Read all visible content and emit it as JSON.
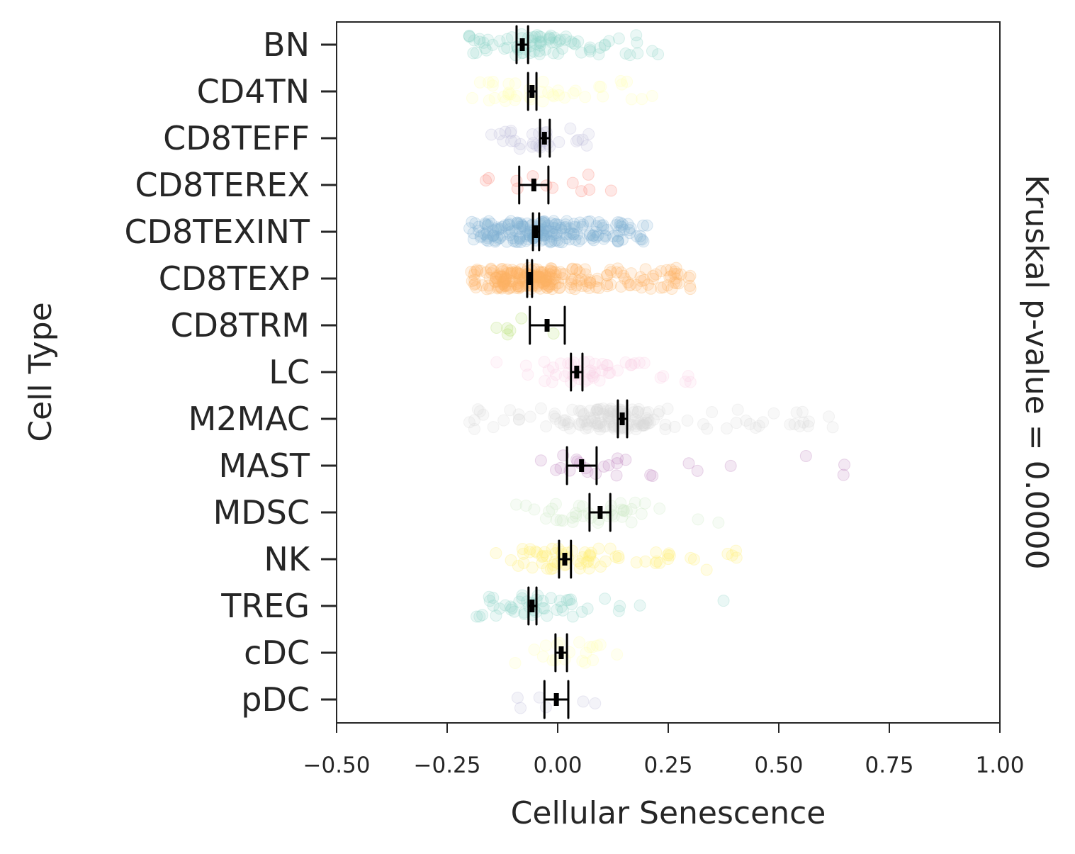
{
  "chart_data": {
    "type": "scatter",
    "subtype": "strip plot with mean and 95% CI error bars",
    "xlabel": "Cellular Senescence",
    "ylabel": "Cell Type",
    "right_label": "Kruskal p-value = 0.0000",
    "xlim": [
      -0.5,
      1.0
    ],
    "xticks": [
      -0.5,
      -0.25,
      0.0,
      0.25,
      0.5,
      0.75,
      1.0
    ],
    "xtick_labels": [
      "−0.50",
      "−0.25",
      "0.00",
      "0.25",
      "0.50",
      "0.75",
      "1.00"
    ],
    "grid": false,
    "categories": [
      "BN",
      "CD4TN",
      "CD8TEFF",
      "CD8TEREX",
      "CD8TEXINT",
      "CD8TEXP",
      "CD8TRM",
      "LC",
      "M2MAC",
      "MAST",
      "MDSC",
      "NK",
      "TREG",
      "cDC",
      "pDC"
    ],
    "colors": [
      "#8dd3c7",
      "#ffffb3",
      "#bebada",
      "#fb8072",
      "#80b1d3",
      "#fdb462",
      "#b3de69",
      "#fccde5",
      "#d9d9d9",
      "#bc80bd",
      "#ccebc5",
      "#ffed6f",
      "#8dd3c7",
      "#ffffb3",
      "#bebada"
    ],
    "means": [
      -0.08,
      -0.058,
      -0.03,
      -0.054,
      -0.05,
      -0.064,
      -0.024,
      0.043,
      0.146,
      0.054,
      0.096,
      0.016,
      -0.058,
      0.008,
      -0.003
    ],
    "ci_low": [
      -0.093,
      -0.067,
      -0.04,
      -0.087,
      -0.056,
      -0.069,
      -0.063,
      0.03,
      0.136,
      0.021,
      0.072,
      0.003,
      -0.066,
      -0.005,
      -0.03
    ],
    "ci_high": [
      -0.067,
      -0.048,
      -0.018,
      -0.021,
      -0.042,
      -0.058,
      0.016,
      0.056,
      0.157,
      0.088,
      0.119,
      0.03,
      -0.048,
      0.021,
      0.024
    ],
    "point_range_min": [
      -0.2,
      -0.2,
      -0.15,
      -0.18,
      -0.2,
      -0.2,
      -0.17,
      -0.15,
      -0.2,
      -0.15,
      -0.15,
      -0.15,
      -0.2,
      -0.12,
      -0.14
    ],
    "point_range_max": [
      0.23,
      0.23,
      0.07,
      0.15,
      0.21,
      0.31,
      0.1,
      0.32,
      0.64,
      0.66,
      0.42,
      0.44,
      0.41,
      0.15,
      0.16
    ],
    "point_counts": [
      80,
      40,
      30,
      12,
      200,
      250,
      6,
      50,
      150,
      25,
      40,
      70,
      50,
      20,
      6
    ]
  }
}
